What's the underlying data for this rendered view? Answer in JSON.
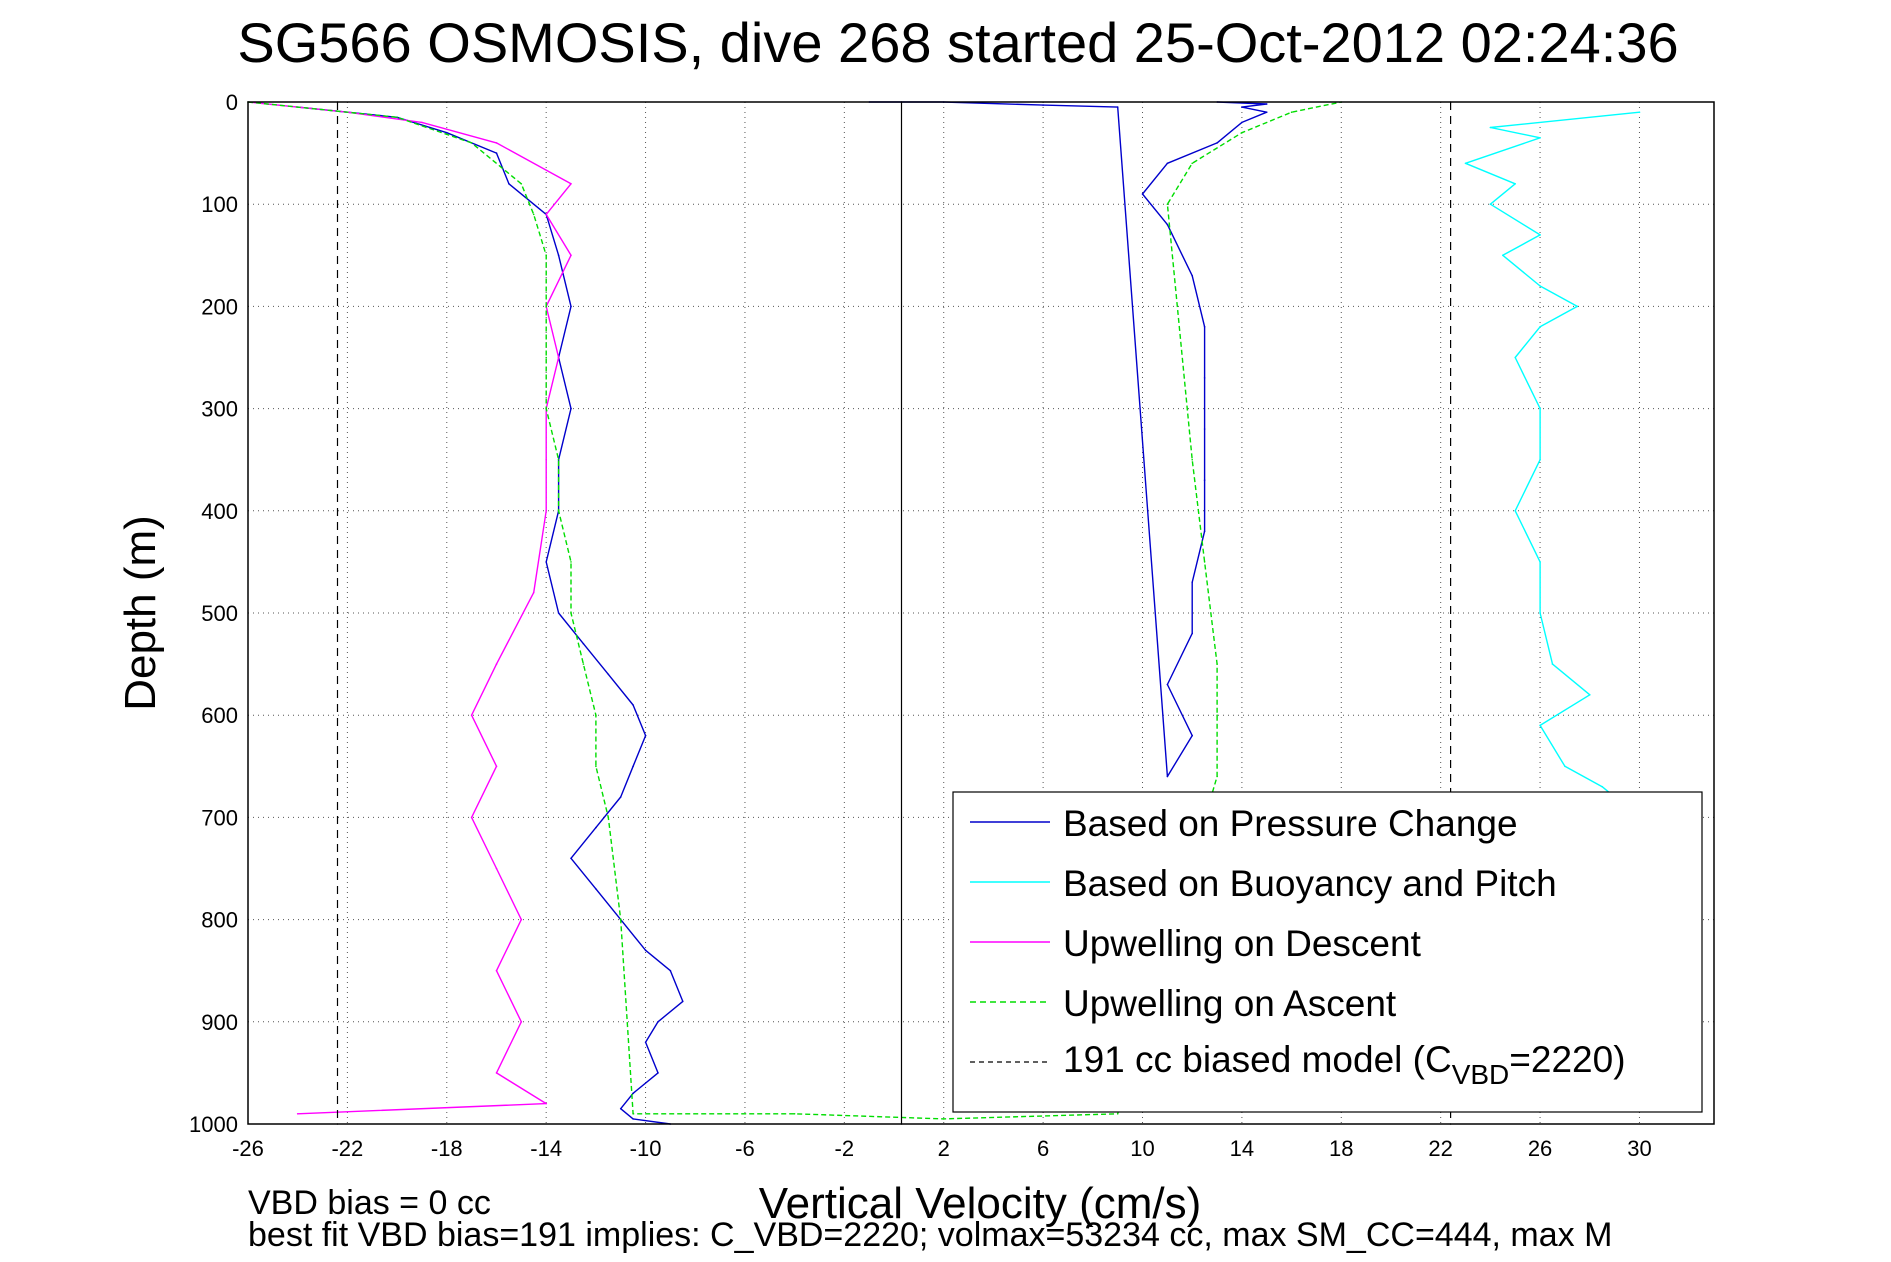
{
  "chart_data": {
    "type": "line",
    "title": "SG566 OSMOSIS, dive 268 started 25-Oct-2012 02:24:36",
    "xlabel": "Vertical Velocity (cm/s)",
    "ylabel": "Depth (m)",
    "xlim": [
      -26,
      33
    ],
    "ylim": [
      1000,
      0
    ],
    "y_reversed": true,
    "grid": true,
    "xticks": [
      "-26",
      "-22",
      "-18",
      "-14",
      "-10",
      "-6",
      "-2",
      "2",
      "6",
      "10",
      "14",
      "18",
      "22",
      "26",
      "30"
    ],
    "yticks": [
      "0",
      "100",
      "200",
      "300",
      "400",
      "500",
      "600",
      "700",
      "800",
      "900",
      "1000"
    ],
    "legend_location": "bottom-right",
    "legend": [
      "Based on Pressure Change",
      "Based on Buoyancy and Pitch",
      "Upwelling on Descent",
      "Upwelling on Ascent",
      "191 cc biased model (C",
      "VBD",
      "=2220)"
    ],
    "colors": {
      "pressure": "#0000cc",
      "buoyancy": "#00ffff",
      "descent": "#ff00ff",
      "ascent": "#00dd00",
      "model": "#000000"
    },
    "series": [
      {
        "name": "Based on Pressure Change",
        "style": "solid",
        "segments": [
          {
            "x": [
              -24,
              -20,
              -18,
              -16,
              -15.5,
              -14,
              -13.5,
              -13,
              -13.5,
              -13,
              -13.5,
              -13.5,
              -14,
              -13.5,
              -12.5,
              -11.5,
              -10.5,
              -10,
              -10.5,
              -11,
              -12,
              -13,
              -12,
              -11,
              -10,
              -9,
              -8.5,
              -9.5,
              -10,
              -9.5,
              -10.5,
              -11,
              -10.5,
              -9
            ],
            "y": [
              5,
              15,
              30,
              50,
              80,
              110,
              150,
              200,
              250,
              300,
              350,
              400,
              450,
              500,
              530,
              560,
              590,
              620,
              650,
              680,
              710,
              740,
              770,
              800,
              830,
              850,
              880,
              900,
              920,
              950,
              970,
              985,
              995,
              1000
            ]
          },
          {
            "x": [
              -1,
              2,
              6,
              9,
              11,
              12,
              11,
              12,
              12,
              12.5,
              12.5,
              12.5,
              12.5,
              12.5,
              12,
              11,
              10,
              11,
              13,
              14,
              15,
              14,
              15,
              13
            ],
            "y": [
              0,
              0,
              3,
              5,
              660,
              620,
              570,
              520,
              470,
              420,
              370,
              320,
              270,
              220,
              170,
              120,
              90,
              60,
              40,
              20,
              10,
              5,
              2,
              0
            ]
          }
        ]
      },
      {
        "name": "Based on Buoyancy and Pitch",
        "style": "solid",
        "segments": [
          {
            "x": [
              30,
              24,
              26,
              23,
              25,
              24,
              26,
              24.5,
              26,
              27.5,
              26,
              25,
              26,
              26,
              25,
              26,
              26,
              26.5,
              28,
              26,
              27,
              28.5,
              30
            ],
            "y": [
              10,
              25,
              35,
              60,
              80,
              100,
              130,
              150,
              180,
              200,
              220,
              250,
              300,
              350,
              400,
              450,
              500,
              550,
              580,
              610,
              650,
              670,
              700
            ]
          }
        ]
      },
      {
        "name": "Upwelling on Descent",
        "style": "solid",
        "segments": [
          {
            "x": [
              -26,
              -22,
              -19,
              -16,
              -13,
              -14,
              -13,
              -14,
              -13.5,
              -14,
              -14,
              -14,
              -14.5,
              -16,
              -17,
              -16,
              -17,
              -16,
              -15,
              -16,
              -15,
              -16,
              -14,
              -24
            ],
            "y": [
              0,
              10,
              20,
              40,
              80,
              110,
              150,
              200,
              250,
              300,
              350,
              400,
              480,
              550,
              600,
              650,
              700,
              750,
              800,
              850,
              900,
              950,
              980,
              990
            ]
          }
        ]
      },
      {
        "name": "Upwelling on Ascent",
        "style": "dashed",
        "segments": [
          {
            "x": [
              -26,
              -20,
              -17,
              -15,
              -14.5,
              -14,
              -14,
              -14,
              -14,
              -13.5,
              -13.5,
              -13,
              -13,
              -12.5,
              -12,
              -12,
              -11.5,
              -11,
              -10.5,
              -4,
              2,
              9,
              13,
              13,
              13,
              12.5,
              12,
              11,
              12,
              14,
              16,
              18
            ],
            "y": [
              0,
              15,
              40,
              80,
              110,
              150,
              200,
              250,
              300,
              350,
              400,
              450,
              500,
              550,
              600,
              650,
              700,
              800,
              990,
              990,
              995,
              990,
              660,
              600,
              550,
              450,
              350,
              100,
              60,
              30,
              10,
              0
            ]
          }
        ]
      },
      {
        "name": "191 cc biased model",
        "style": "dash",
        "segments": [
          {
            "x": [
              -22.4,
              -22.4
            ],
            "y": [
              0,
              1000
            ]
          },
          {
            "x": [
              22.4,
              22.4
            ],
            "y": [
              0,
              1000
            ]
          }
        ]
      },
      {
        "name": "zero reference",
        "style": "solid",
        "segments": [
          {
            "x": [
              0.3,
              0.3
            ],
            "y": [
              0,
              1000
            ]
          }
        ]
      }
    ]
  },
  "notes": {
    "vbd_bias": "VBD bias = 0 cc",
    "best_fit": "best fit VBD bias=191 implies: C_VBD=2220; volmax=53234 cc, max SM_CC=444, max M"
  }
}
